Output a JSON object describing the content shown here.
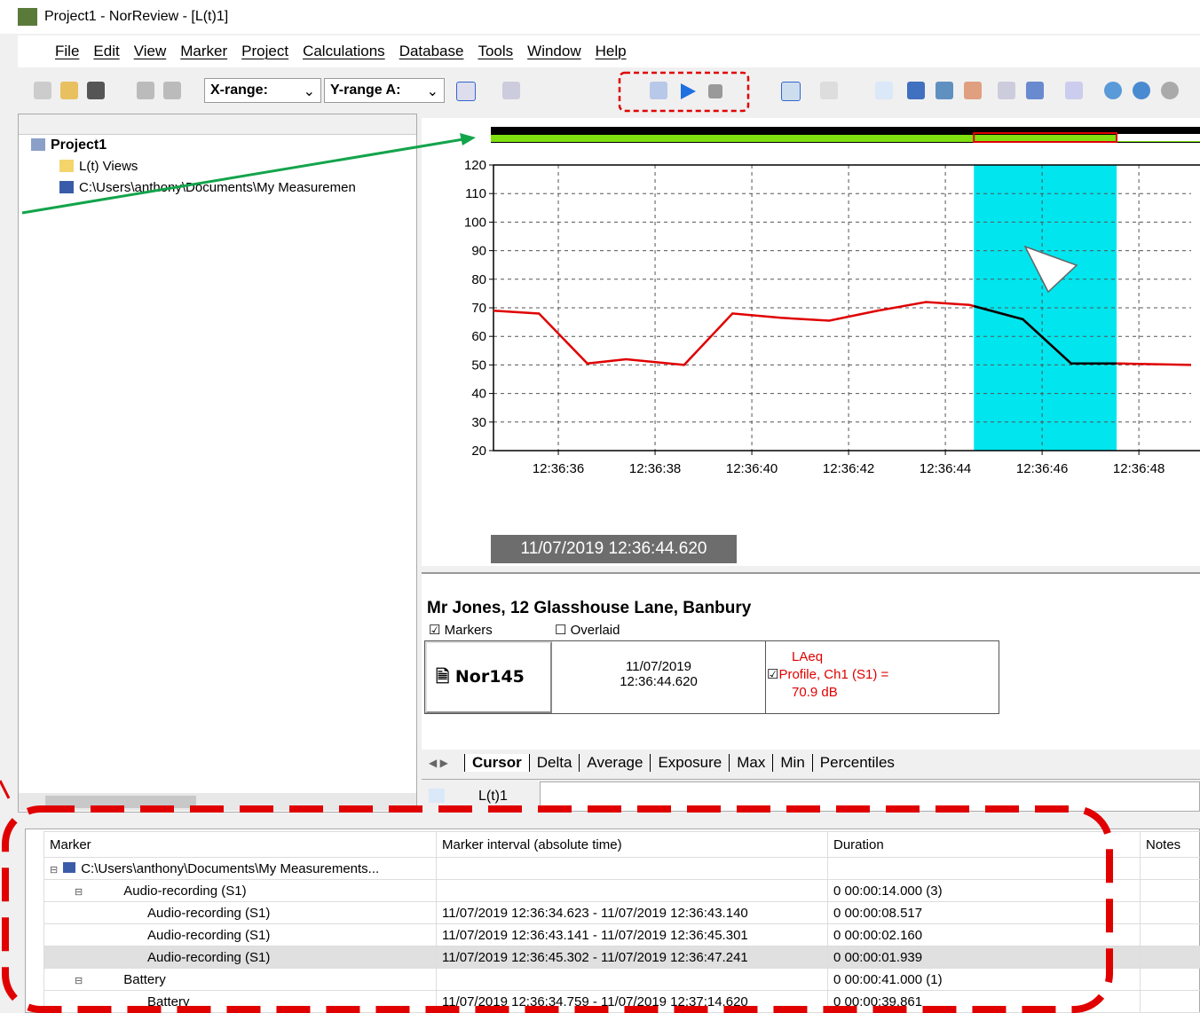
{
  "title_bar": "Project1 - NorReview - [L(t)1]",
  "menu": [
    "File",
    "Edit",
    "View",
    "Marker",
    "Project",
    "Calculations",
    "Database",
    "Tools",
    "Window",
    "Help"
  ],
  "toolbar": {
    "x_range": "X-range:",
    "y_range": "Y-range A:"
  },
  "tree": [
    {
      "label": "Project1",
      "level": 0
    },
    {
      "label": "L(t) Views",
      "level": 1
    },
    {
      "label": "C:\\Users\\anthony\\Documents\\My Measuremen",
      "level": 1
    }
  ],
  "chart_data": {
    "type": "line",
    "x": [
      "12:36:34.66",
      "12:36:35.6",
      "12:36:36.6",
      "12:36:37.4",
      "12:36:38.6",
      "12:36:39.6",
      "12:36:40.6",
      "12:36:41.6",
      "12:36:42.6",
      "12:36:43.6",
      "12:36:44.5",
      "12:36:45.6",
      "12:36:46.6",
      "12:36:47.6",
      "12:36:49.08"
    ],
    "series": [
      {
        "color": "#e00000",
        "values": [
          69,
          68,
          50.5,
          52,
          50,
          68,
          66.5,
          65.5,
          69,
          72,
          71,
          66,
          50.5,
          50.5,
          50
        ]
      }
    ],
    "selection": {
      "range": [
        "12:36:44.59",
        "12:36:47.54"
      ],
      "color": "#00e5ee",
      "line_color": "#000000"
    },
    "xlim": [
      "12:36:34.66",
      "12:36:49.08"
    ],
    "xticks": [
      "12:36:36",
      "12:36:38",
      "12:36:40",
      "12:36:42",
      "12:36:44",
      "12:36:46",
      "12:36:48"
    ],
    "ylim": [
      20,
      120
    ],
    "yticks": [
      20,
      30,
      40,
      50,
      60,
      70,
      80,
      90,
      100,
      110,
      120
    ],
    "grid": true
  },
  "cursor_time": "11/07/2019 12:36:44.620",
  "info": {
    "title": "Mr Jones, 12 Glasshouse Lane, Banbury",
    "markers": "Markers",
    "overlaid": "Overlaid",
    "instrument": "Nor145",
    "date": "11/07/2019",
    "time": "12:36:44.620",
    "result": [
      "LAeq",
      "Profile, Ch1 (S1) =",
      "70.9 dB"
    ]
  },
  "tabs": [
    "Cursor",
    "Delta",
    "Average",
    "Exposure",
    "Max",
    "Min",
    "Percentiles"
  ],
  "view_tab": "L(t)1",
  "table": {
    "headers": [
      "Marker",
      "Marker interval (absolute time)",
      "Duration",
      "Notes"
    ],
    "rows": [
      {
        "level": 0,
        "marker": "C:\\Users\\anthony\\Documents\\My Measurements..."
      },
      {
        "level": 1,
        "marker": "Audio-recording (S1)",
        "duration": "0 00:00:14.000 (3)"
      },
      {
        "level": 2,
        "marker": "Audio-recording (S1)",
        "interval": "11/07/2019 12:36:34.623 - 11/07/2019 12:36:43.140",
        "duration": "0 00:00:08.517"
      },
      {
        "level": 2,
        "marker": "Audio-recording (S1)",
        "interval": "11/07/2019 12:36:43.141 - 11/07/2019 12:36:45.301",
        "duration": "0 00:00:02.160"
      },
      {
        "level": 2,
        "marker": "Audio-recording (S1)",
        "interval": "11/07/2019 12:36:45.302 - 11/07/2019 12:36:47.241",
        "duration": "0 00:00:01.939",
        "selected": true
      },
      {
        "level": 1,
        "marker": "Battery",
        "duration": "0 00:00:41.000 (1)"
      },
      {
        "level": 2,
        "marker": "Battery",
        "interval": "11/07/2019 12:36:34.759 - 11/07/2019 12:37:14.620",
        "duration": "0 00:00:39.861"
      }
    ]
  }
}
